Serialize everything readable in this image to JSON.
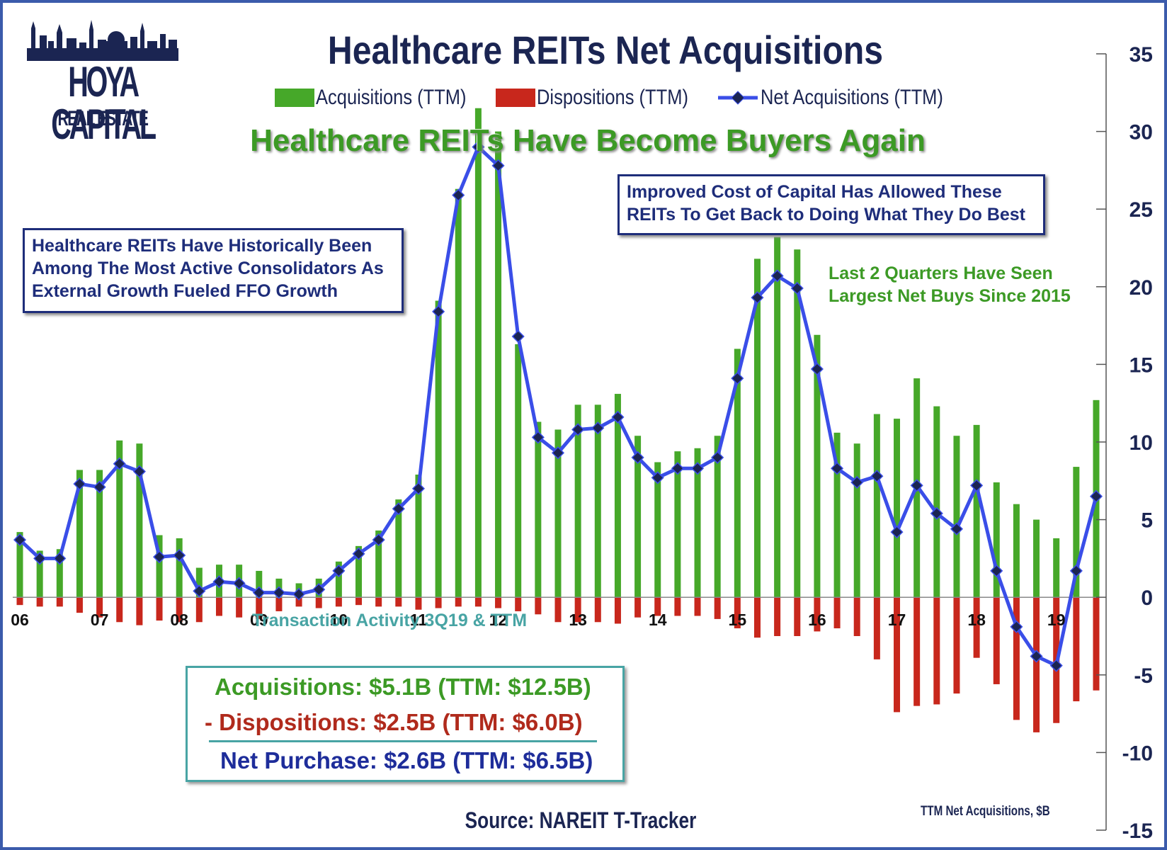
{
  "logo": {
    "name": "HOYA CAPITAL",
    "sub": "REAL ESTATE"
  },
  "title": "Healthcare REITs Net Acquisitions",
  "subtitle": "Healthcare REITs Have Become Buyers Again",
  "legend": [
    {
      "label": "Acquisitions (TTM)",
      "color": "#46a829"
    },
    {
      "label": "Dispositions (TTM)",
      "color": "#c8271c"
    },
    {
      "label": "Net Acquisitions (TTM)",
      "color": "#3a4ee8"
    }
  ],
  "annotations": {
    "left_box": [
      "Healthcare REITs Have Historically Been",
      "Among The Most Active Consolidators As",
      "External Growth Fueled FFO Growth"
    ],
    "right_box": [
      "Improved Cost of Capital Has Allowed These",
      "REITs To Get Back to Doing What They Do Best"
    ],
    "green_note": [
      "Last 2 Quarters Have Seen",
      "Largest Net Buys Since 2015"
    ]
  },
  "transactions": {
    "title": "Transaction Activity 3Q19 & TTM",
    "acquisitions": "Acquisitions: $5.1B (TTM: $12.5B)",
    "dispositions": "- Dispositions: $2.5B (TTM: $6.0B)",
    "net": "Net Purchase: $2.6B (TTM: $6.5B)"
  },
  "source": "Source: NAREIT T-Tracker",
  "axis_note": "TTM Net Acquisitions, $B",
  "colors": {
    "acq": "#46a829",
    "disp": "#c8271c",
    "net": "#3a4ee8",
    "navy": "#1b2552"
  },
  "chart_data": {
    "type": "bar",
    "title": "Healthcare REITs Net Acquisitions",
    "ylabel": "TTM Net Acquisitions, $B",
    "ylim": [
      -15,
      35
    ],
    "yticks": [
      35,
      30,
      25,
      20,
      15,
      10,
      5,
      0,
      -5,
      -10,
      -15
    ],
    "xtick_labels": [
      "06",
      "07",
      "08",
      "09",
      "10",
      "11",
      "12",
      "13",
      "14",
      "15",
      "16",
      "17",
      "18",
      "19"
    ],
    "grid": false,
    "series": [
      {
        "name": "Acquisitions (TTM)",
        "type": "bar",
        "values": [
          4.2,
          3.0,
          3.1,
          8.2,
          8.2,
          10.1,
          9.9,
          4.0,
          3.8,
          1.9,
          2.1,
          2.1,
          1.7,
          1.2,
          0.9,
          1.2,
          2.3,
          3.3,
          4.3,
          6.3,
          7.9,
          19.1,
          26.3,
          31.5,
          30.0,
          16.3,
          11.3,
          10.8,
          12.4,
          12.4,
          13.1,
          10.4,
          8.7,
          9.4,
          9.6,
          10.4,
          16.0,
          21.8,
          23.2,
          22.4,
          16.9,
          10.6,
          9.9,
          11.8,
          11.5,
          14.1,
          12.3,
          10.4,
          11.1,
          7.4,
          6.0,
          5.0,
          3.8,
          8.4,
          12.7
        ]
      },
      {
        "name": "Dispositions (TTM)",
        "type": "bar",
        "values": [
          -0.5,
          -0.6,
          -0.6,
          -1.0,
          -1.3,
          -1.6,
          -1.8,
          -1.5,
          -1.6,
          -1.6,
          -1.2,
          -1.3,
          -1.4,
          -0.9,
          -0.6,
          -0.7,
          -0.6,
          -0.5,
          -0.6,
          -0.6,
          -0.8,
          -0.7,
          -0.6,
          -0.6,
          -0.7,
          -0.9,
          -1.1,
          -1.6,
          -1.6,
          -1.6,
          -1.7,
          -1.3,
          -1.2,
          -1.2,
          -1.2,
          -1.4,
          -2.0,
          -2.6,
          -2.5,
          -2.5,
          -2.2,
          -2.0,
          -2.5,
          -4.0,
          -7.4,
          -7.0,
          -6.9,
          -6.2,
          -3.9,
          -5.6,
          -7.9,
          -8.7,
          -8.1,
          -6.7,
          -6.0
        ]
      },
      {
        "name": "Net Acquisitions (TTM)",
        "type": "line",
        "values": [
          3.7,
          2.5,
          2.5,
          7.3,
          7.1,
          8.6,
          8.1,
          2.6,
          2.7,
          0.4,
          1.0,
          0.9,
          0.3,
          0.3,
          0.2,
          0.5,
          1.7,
          2.8,
          3.7,
          5.7,
          7.0,
          18.4,
          25.9,
          29.0,
          27.8,
          16.8,
          10.3,
          9.3,
          10.8,
          10.9,
          11.6,
          9.0,
          7.7,
          8.3,
          8.3,
          9.0,
          14.1,
          19.3,
          20.7,
          19.9,
          14.7,
          8.3,
          7.4,
          7.8,
          4.2,
          7.2,
          5.4,
          4.4,
          7.2,
          1.7,
          -1.9,
          -3.8,
          -4.4,
          1.7,
          6.5
        ]
      }
    ]
  }
}
